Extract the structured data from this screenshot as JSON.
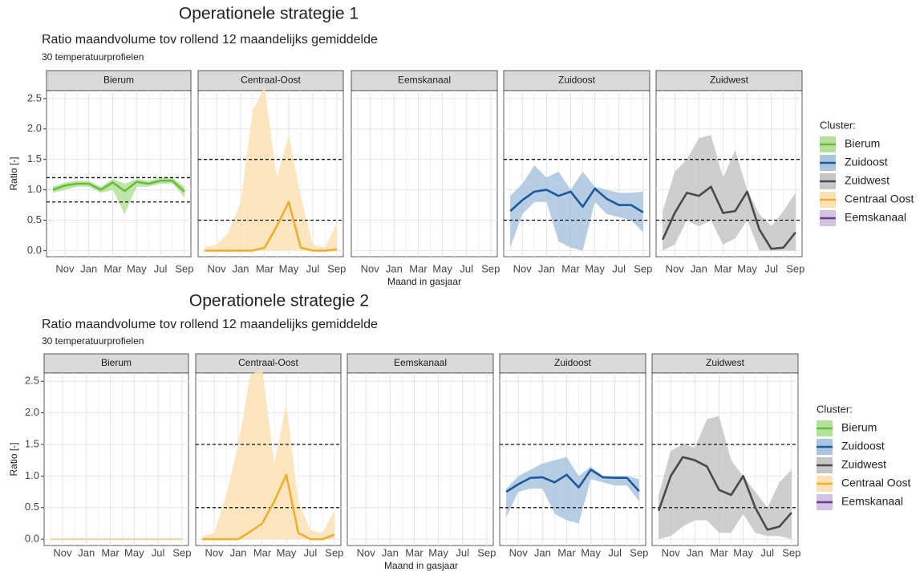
{
  "chart_data": [
    {
      "type": "line",
      "heading": "Operationele strategie 1",
      "title": "Ratio maandvolume tov rollend 12 maandelijks gemiddelde",
      "subtitle": "30 temperatuurprofielen",
      "x_label": "Maand in gasjaar",
      "y_label": "Ratio [-]",
      "categories": [
        null,
        "Nov",
        null,
        "Jan",
        null,
        "Mar",
        null,
        "May",
        null,
        "Jul",
        null,
        "Sep"
      ],
      "ylim": [
        -0.1,
        2.63
      ],
      "yticks": [
        {
          "value": 0,
          "label": "0.0"
        },
        0.5,
        {
          "value": 1,
          "label": "1.0"
        },
        1.5,
        {
          "value": 2,
          "label": "2.0"
        },
        2.5
      ],
      "grid": true,
      "facets": [
        {
          "name": "Bierum",
          "color": "#66bd3c",
          "band_color": "#b5e09a",
          "values": [
            1.0,
            1.07,
            1.1,
            1.1,
            1.0,
            1.12,
            0.98,
            1.13,
            1.1,
            1.15,
            1.15,
            0.97
          ],
          "lower": [
            0.95,
            1.0,
            1.05,
            1.05,
            0.95,
            1.0,
            0.6,
            1.05,
            1.05,
            1.1,
            1.1,
            0.88
          ],
          "upper": [
            1.05,
            1.12,
            1.15,
            1.15,
            1.05,
            1.18,
            1.1,
            1.18,
            1.15,
            1.2,
            1.2,
            1.05
          ],
          "reference_lines": [
            1.2,
            0.8
          ]
        },
        {
          "name": "Centraal-Oost",
          "color": "#f0ad2e",
          "band_color": "#fbe2b4",
          "values": [
            0,
            0,
            0,
            0,
            0,
            0.05,
            0.4,
            0.8,
            0.05,
            0,
            0,
            0.02
          ],
          "lower": [
            0,
            0,
            0,
            0,
            0,
            0,
            0,
            0,
            0,
            0,
            0,
            0
          ],
          "upper": [
            0.05,
            0.1,
            0.3,
            0.8,
            2.3,
            2.7,
            1.2,
            1.9,
            0.9,
            0.1,
            0.05,
            0.45
          ],
          "reference_lines": [
            1.5,
            0.5
          ]
        },
        {
          "name": "Eemskanaal",
          "color": "#6a3d8f",
          "band_color": "#d2c3e0",
          "values": [],
          "lower": [],
          "upper": [],
          "reference_lines": []
        },
        {
          "name": "Zuidoost",
          "color": "#1c5a9c",
          "band_color": "#a9c4df",
          "values": [
            0.65,
            0.83,
            0.97,
            1.0,
            0.9,
            0.97,
            0.72,
            1.02,
            0.85,
            0.75,
            0.75,
            0.63
          ],
          "lower": [
            0.05,
            0.6,
            0.8,
            0.8,
            0.15,
            0.05,
            0.0,
            0.8,
            0.6,
            0.55,
            0.5,
            0.3
          ],
          "upper": [
            0.9,
            1.1,
            1.4,
            1.2,
            1.3,
            1.0,
            1.3,
            1.05,
            1.0,
            0.95,
            0.95,
            0.97
          ],
          "reference_lines": [
            1.5,
            0.5
          ]
        },
        {
          "name": "Zuidwest",
          "color": "#4a4a4a",
          "band_color": "#c6c6c6",
          "values": [
            0.18,
            0.62,
            0.95,
            0.9,
            1.05,
            0.62,
            0.65,
            0.97,
            0.35,
            0.03,
            0.05,
            0.3
          ],
          "lower": [
            0,
            0.1,
            0.5,
            0.4,
            0.5,
            0.1,
            0.2,
            0.5,
            0,
            0,
            0,
            0
          ],
          "upper": [
            0.65,
            1.3,
            1.5,
            1.85,
            1.9,
            1.2,
            1.65,
            1.0,
            0.6,
            0.4,
            0.65,
            0.95
          ],
          "reference_lines": [
            1.5,
            0.5
          ]
        }
      ],
      "legend": {
        "title": "Cluster:",
        "items": [
          {
            "name": "Bierum",
            "color": "#66bd3c",
            "band_color": "#b5e09a"
          },
          {
            "name": "Zuidoost",
            "color": "#1c5a9c",
            "band_color": "#a9c4df"
          },
          {
            "name": "Zuidwest",
            "color": "#4a4a4a",
            "band_color": "#c6c6c6"
          },
          {
            "name": "Centraal Oost",
            "color": "#f0ad2e",
            "band_color": "#fbe2b4"
          },
          {
            "name": "Eemskanaal",
            "color": "#6a3d8f",
            "band_color": "#d2c3e0"
          }
        ]
      }
    },
    {
      "type": "line",
      "heading": "Operationele strategie 2",
      "title": "Ratio maandvolume tov rollend 12 maandelijks gemiddelde",
      "subtitle": "30 temperatuurprofielen",
      "x_label": "Maand in gasjaar",
      "y_label": "Ratio [-]",
      "categories": [
        null,
        "Nov",
        null,
        "Jan",
        null,
        "Mar",
        null,
        "May",
        null,
        "Jul",
        null,
        "Sep"
      ],
      "ylim": [
        -0.1,
        2.63
      ],
      "yticks": [
        {
          "value": 0,
          "label": "0.0"
        },
        0.5,
        {
          "value": 1,
          "label": "1.0"
        },
        1.5,
        {
          "value": 2,
          "label": "2.0"
        },
        2.5
      ],
      "grid": true,
      "facets": [
        {
          "name": "Bierum",
          "color": "#e8d9b8",
          "band_color": "#f6eedc",
          "values": [
            0,
            0,
            0,
            0,
            0,
            0,
            0,
            0,
            0,
            0,
            0,
            0
          ],
          "lower": [],
          "upper": [],
          "reference_lines": []
        },
        {
          "name": "Centraal-Oost",
          "color": "#f0ad2e",
          "band_color": "#fbe2b4",
          "values": [
            0,
            0,
            0,
            0,
            0.12,
            0.25,
            0.6,
            1.02,
            0.1,
            0,
            0,
            0.07
          ],
          "lower": [
            0,
            0,
            0,
            0,
            0,
            0,
            0,
            0,
            0,
            0,
            0,
            0
          ],
          "upper": [
            0.05,
            0.1,
            0.7,
            1.5,
            2.6,
            2.7,
            1.2,
            2.15,
            0.6,
            0.15,
            0.1,
            0.45
          ],
          "reference_lines": [
            1.5,
            0.5
          ]
        },
        {
          "name": "Eemskanaal",
          "color": "#6a3d8f",
          "band_color": "#d2c3e0",
          "values": [],
          "lower": [],
          "upper": [],
          "reference_lines": []
        },
        {
          "name": "Zuidoost",
          "color": "#1c5a9c",
          "band_color": "#a9c4df",
          "values": [
            0.75,
            0.87,
            0.97,
            0.98,
            0.9,
            1.02,
            0.82,
            1.1,
            0.98,
            0.97,
            0.97,
            0.76
          ],
          "lower": [
            0.35,
            0.75,
            0.8,
            0.8,
            0.4,
            0.3,
            0.25,
            0.95,
            0.9,
            0.85,
            0.85,
            0.6
          ],
          "upper": [
            0.8,
            1.0,
            1.1,
            1.2,
            1.25,
            1.3,
            1.0,
            1.15,
            1.0,
            1.0,
            1.0,
            0.95
          ],
          "reference_lines": [
            1.5,
            0.5
          ]
        },
        {
          "name": "Zuidwest",
          "color": "#4a4a4a",
          "band_color": "#c6c6c6",
          "values": [
            0.45,
            1.0,
            1.3,
            1.25,
            1.15,
            0.78,
            0.7,
            1.0,
            0.5,
            0.15,
            0.2,
            0.42
          ],
          "lower": [
            0,
            0.05,
            0.2,
            0.3,
            0.3,
            0.1,
            0.1,
            0.4,
            0.1,
            0.05,
            0.05,
            0.0
          ],
          "upper": [
            0.7,
            1.4,
            1.5,
            1.45,
            1.9,
            1.95,
            1.25,
            1.0,
            0.75,
            0.5,
            0.9,
            1.1
          ],
          "reference_lines": [
            1.5,
            0.5
          ]
        }
      ],
      "legend": {
        "title": "Cluster:",
        "items": [
          {
            "name": "Bierum",
            "color": "#66bd3c",
            "band_color": "#b5e09a"
          },
          {
            "name": "Zuidoost",
            "color": "#1c5a9c",
            "band_color": "#a9c4df"
          },
          {
            "name": "Zuidwest",
            "color": "#4a4a4a",
            "band_color": "#c6c6c6"
          },
          {
            "name": "Centraal Oost",
            "color": "#f0ad2e",
            "band_color": "#fbe2b4"
          },
          {
            "name": "Eemskanaal",
            "color": "#6a3d8f",
            "band_color": "#d2c3e0"
          }
        ]
      }
    }
  ]
}
